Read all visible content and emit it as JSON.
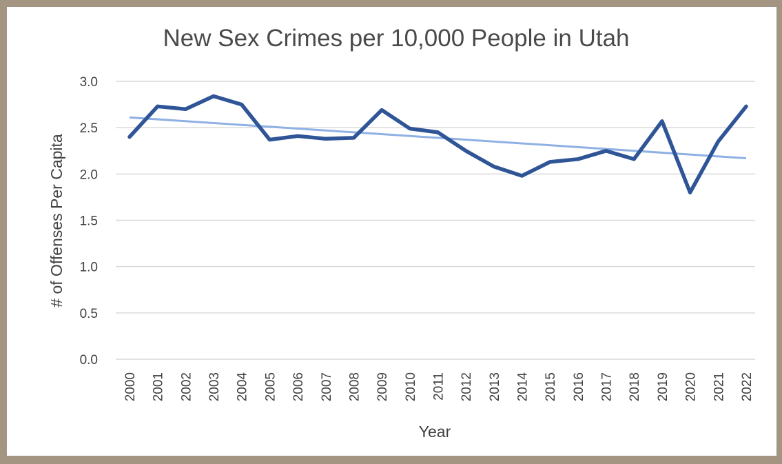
{
  "chart_data": {
    "type": "line",
    "title": "New Sex Crimes per 10,000 People in Utah",
    "xlabel": "Year",
    "ylabel": "# of Offenses Per Capita",
    "ylim": [
      0,
      3.0
    ],
    "yticks": [
      "0.0",
      "0.5",
      "1.0",
      "1.5",
      "2.0",
      "2.5",
      "3.0"
    ],
    "ytick_values": [
      0,
      0.5,
      1.0,
      1.5,
      2.0,
      2.5,
      3.0
    ],
    "categories": [
      "2000",
      "2001",
      "2002",
      "2003",
      "2004",
      "2005",
      "2006",
      "2007",
      "2008",
      "2009",
      "2010",
      "2011",
      "2012",
      "2013",
      "2014",
      "2015",
      "2016",
      "2017",
      "2018",
      "2019",
      "2020",
      "2021",
      "2022"
    ],
    "series": [
      {
        "values": [
          2.4,
          2.73,
          2.7,
          2.84,
          2.75,
          2.37,
          2.41,
          2.38,
          2.39,
          2.69,
          2.49,
          2.45,
          2.25,
          2.08,
          1.98,
          2.13,
          2.16,
          2.25,
          2.16,
          2.57,
          1.8,
          2.35,
          2.73
        ],
        "color": "#2f5597",
        "line_style": "solid"
      },
      {
        "trendline": true,
        "linear_fit": [
          2.61,
          2.17
        ],
        "color": "#8fb0e5",
        "line_style": "solid"
      }
    ],
    "grid": true,
    "legend": "none"
  },
  "colors": {
    "frame": "#a49583",
    "gridline": "#d9d9d9",
    "series_line": "#2f5597",
    "trend_line": "#8fb0e5"
  }
}
